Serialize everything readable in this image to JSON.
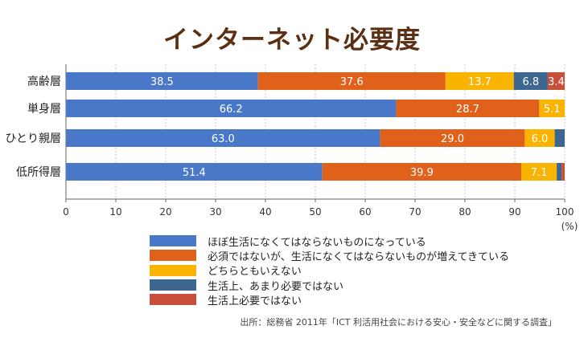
{
  "chart_data": {
    "type": "bar",
    "orientation": "horizontal",
    "stacked": true,
    "title": "インターネット必要度",
    "categories": [
      "高齢層",
      "単身層",
      "ひとり親層",
      "低所得層"
    ],
    "series": [
      {
        "name": "ほぼ生活になくてはならないものになっている",
        "color": "#4a78c8",
        "values": [
          38.5,
          66.2,
          63.0,
          51.4
        ],
        "labels": [
          "38.5",
          "66.2",
          "63.0",
          "51.4"
        ]
      },
      {
        "name": "必須ではないが、生活になくてはならないものが増えてきている",
        "color": "#e0621a",
        "values": [
          37.6,
          28.7,
          29.0,
          39.9
        ],
        "labels": [
          "37.6",
          "28.7",
          "29.0",
          "39.9"
        ]
      },
      {
        "name": "どちらともいえない",
        "color": "#f8b400",
        "values": [
          13.7,
          5.1,
          6.0,
          7.1
        ],
        "labels": [
          "13.7",
          "5.1",
          "6.0",
          "7.1"
        ]
      },
      {
        "name": "生活上、あまり必要ではない",
        "color": "#3d6690",
        "values": [
          6.8,
          0,
          2.0,
          1.0
        ],
        "labels": [
          "6.8",
          "",
          "",
          ""
        ]
      },
      {
        "name": "生活上必要ではない",
        "color": "#c8503a",
        "values": [
          3.4,
          0,
          0,
          0.6
        ],
        "labels": [
          "3.4",
          "",
          "",
          ""
        ]
      }
    ],
    "xlim": [
      0,
      100
    ],
    "xticks": [
      0,
      10,
      20,
      30,
      40,
      50,
      60,
      70,
      80,
      90,
      100
    ],
    "xunit": "(%)",
    "legend_position": "bottom",
    "source": "出所：総務省 2011年「ICT 利活用社会における安心・安全などに関する調査」"
  }
}
